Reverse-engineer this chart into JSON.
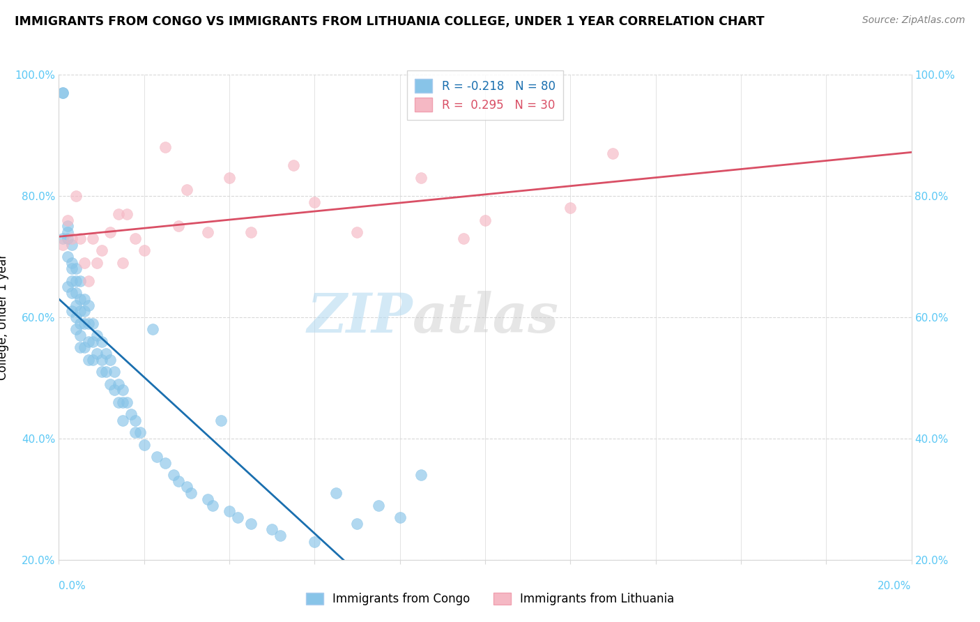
{
  "title": "IMMIGRANTS FROM CONGO VS IMMIGRANTS FROM LITHUANIA COLLEGE, UNDER 1 YEAR CORRELATION CHART",
  "source": "Source: ZipAtlas.com",
  "ylabel": "College, Under 1 year",
  "legend_entry1": "R = -0.218   N = 80",
  "legend_entry2": "R =  0.295   N = 30",
  "legend_label1": "Immigrants from Congo",
  "legend_label2": "Immigrants from Lithuania",
  "watermark_zip": "ZIP",
  "watermark_atlas": "atlas",
  "blue_color": "#88c4e8",
  "pink_color": "#f5b8c4",
  "blue_line_color": "#1a6faf",
  "pink_line_color": "#d94f65",
  "xlim": [
    0.0,
    0.2
  ],
  "ylim": [
    0.2,
    1.0
  ],
  "tick_color": "#5bc8f5",
  "grid_color": "#d8d8d8",
  "congo_x": [
    0.001,
    0.001,
    0.001,
    0.002,
    0.002,
    0.002,
    0.002,
    0.002,
    0.003,
    0.003,
    0.003,
    0.003,
    0.003,
    0.003,
    0.004,
    0.004,
    0.004,
    0.004,
    0.004,
    0.004,
    0.005,
    0.005,
    0.005,
    0.005,
    0.005,
    0.005,
    0.006,
    0.006,
    0.006,
    0.006,
    0.007,
    0.007,
    0.007,
    0.007,
    0.008,
    0.008,
    0.008,
    0.009,
    0.009,
    0.01,
    0.01,
    0.01,
    0.011,
    0.011,
    0.012,
    0.012,
    0.013,
    0.013,
    0.014,
    0.014,
    0.015,
    0.015,
    0.015,
    0.016,
    0.017,
    0.018,
    0.018,
    0.019,
    0.02,
    0.022,
    0.023,
    0.025,
    0.027,
    0.028,
    0.03,
    0.031,
    0.035,
    0.036,
    0.038,
    0.04,
    0.042,
    0.045,
    0.05,
    0.052,
    0.06,
    0.065,
    0.07,
    0.075,
    0.08,
    0.085
  ],
  "congo_y": [
    0.97,
    0.97,
    0.73,
    0.75,
    0.74,
    0.73,
    0.7,
    0.65,
    0.72,
    0.69,
    0.68,
    0.66,
    0.64,
    0.61,
    0.68,
    0.66,
    0.64,
    0.62,
    0.6,
    0.58,
    0.66,
    0.63,
    0.61,
    0.59,
    0.57,
    0.55,
    0.63,
    0.61,
    0.59,
    0.55,
    0.62,
    0.59,
    0.56,
    0.53,
    0.59,
    0.56,
    0.53,
    0.57,
    0.54,
    0.56,
    0.53,
    0.51,
    0.54,
    0.51,
    0.53,
    0.49,
    0.51,
    0.48,
    0.49,
    0.46,
    0.48,
    0.46,
    0.43,
    0.46,
    0.44,
    0.43,
    0.41,
    0.41,
    0.39,
    0.58,
    0.37,
    0.36,
    0.34,
    0.33,
    0.32,
    0.31,
    0.3,
    0.29,
    0.43,
    0.28,
    0.27,
    0.26,
    0.25,
    0.24,
    0.23,
    0.31,
    0.26,
    0.29,
    0.27,
    0.34
  ],
  "lithuania_x": [
    0.001,
    0.002,
    0.003,
    0.004,
    0.005,
    0.006,
    0.007,
    0.008,
    0.009,
    0.01,
    0.012,
    0.014,
    0.015,
    0.016,
    0.018,
    0.02,
    0.025,
    0.028,
    0.03,
    0.035,
    0.04,
    0.045,
    0.055,
    0.06,
    0.07,
    0.085,
    0.095,
    0.1,
    0.12,
    0.13
  ],
  "lithuania_y": [
    0.72,
    0.76,
    0.73,
    0.8,
    0.73,
    0.69,
    0.66,
    0.73,
    0.69,
    0.71,
    0.74,
    0.77,
    0.69,
    0.77,
    0.73,
    0.71,
    0.88,
    0.75,
    0.81,
    0.74,
    0.83,
    0.74,
    0.85,
    0.79,
    0.74,
    0.83,
    0.73,
    0.76,
    0.78,
    0.87
  ]
}
